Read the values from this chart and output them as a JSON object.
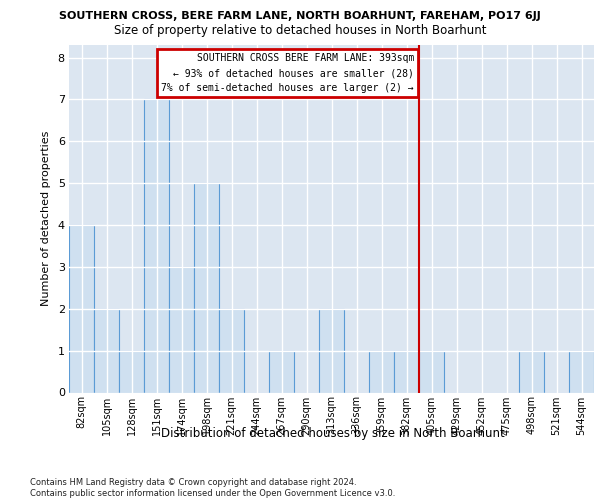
{
  "title": "SOUTHERN CROSS, BERE FARM LANE, NORTH BOARHUNT, FAREHAM, PO17 6JJ",
  "subtitle": "Size of property relative to detached houses in North Boarhunt",
  "xlabel": "Distribution of detached houses by size in North Boarhunt",
  "ylabel": "Number of detached properties",
  "categories": [
    "82sqm",
    "105sqm",
    "128sqm",
    "151sqm",
    "174sqm",
    "198sqm",
    "221sqm",
    "244sqm",
    "267sqm",
    "290sqm",
    "313sqm",
    "336sqm",
    "359sqm",
    "382sqm",
    "405sqm",
    "429sqm",
    "452sqm",
    "475sqm",
    "498sqm",
    "521sqm",
    "544sqm"
  ],
  "values": [
    4,
    2,
    1,
    7,
    3,
    5,
    2,
    0,
    1,
    0,
    2,
    0,
    1,
    1,
    1,
    0,
    0,
    0,
    1,
    0,
    1
  ],
  "bar_color": "#cfe0f0",
  "bar_edge_color": "#5b9bd5",
  "vline_color": "#cc0000",
  "vline_x": 13.5,
  "annotation_text": "SOUTHERN CROSS BERE FARM LANE: 393sqm\n← 93% of detached houses are smaller (28)\n7% of semi-detached houses are larger (2) →",
  "annotation_box_color": "white",
  "annotation_box_edge": "#cc0000",
  "ylim": [
    0,
    8.3
  ],
  "yticks": [
    0,
    1,
    2,
    3,
    4,
    5,
    6,
    7,
    8
  ],
  "bg_color": "#dce6f1",
  "grid_color": "white",
  "footer": "Contains HM Land Registry data © Crown copyright and database right 2024.\nContains public sector information licensed under the Open Government Licence v3.0."
}
